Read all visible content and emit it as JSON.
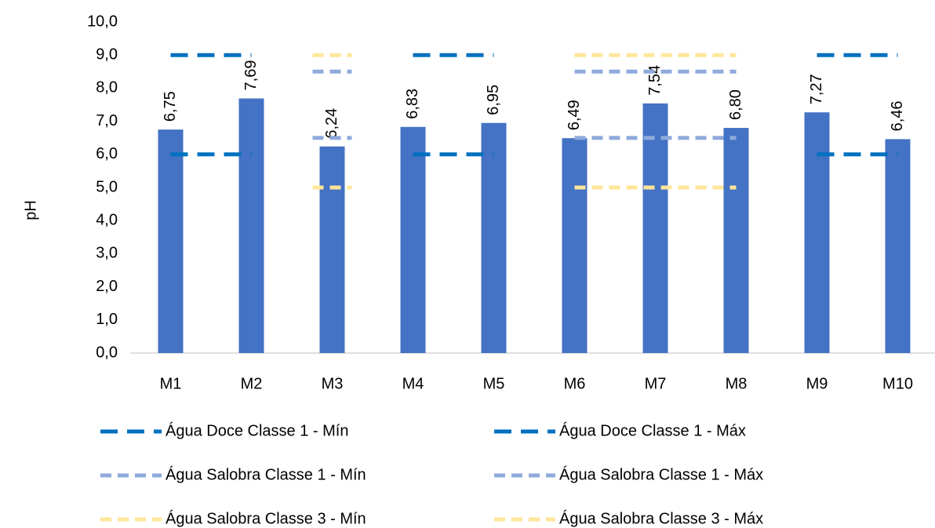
{
  "chart_data": {
    "type": "bar",
    "y_label": "pH",
    "categories": [
      "M1",
      "M2",
      "M3",
      "M4",
      "M5",
      "M6",
      "M7",
      "M8",
      "M9",
      "M10"
    ],
    "values": [
      6.75,
      7.69,
      6.24,
      6.83,
      6.95,
      6.49,
      7.54,
      6.8,
      7.27,
      6.46
    ],
    "value_labels": [
      "6,75",
      "7,69",
      "6,24",
      "6,83",
      "6,95",
      "6,49",
      "7,54",
      "6,80",
      "7,27",
      "6,46"
    ],
    "color": "#4472c4",
    "ylim": [
      0,
      10
    ],
    "yticks": [
      {
        "value": 0,
        "label": "0,0"
      },
      {
        "value": 1,
        "label": "1,0"
      },
      {
        "value": 2,
        "label": "2,0"
      },
      {
        "value": 3,
        "label": "3,0"
      },
      {
        "value": 4,
        "label": "4,0"
      },
      {
        "value": 5,
        "label": "5,0"
      },
      {
        "value": 6,
        "label": "6,0"
      },
      {
        "value": 7,
        "label": "7,0"
      },
      {
        "value": 8,
        "label": "8,0"
      },
      {
        "value": 9,
        "label": "9,0"
      },
      {
        "value": 10,
        "label": "10,0"
      }
    ],
    "grid": false,
    "series": [
      {
        "name": "Água Doce Classe 1 - Mín",
        "type": "line",
        "color": "#0070c0",
        "values": [
          6,
          6,
          null,
          6,
          6,
          null,
          null,
          null,
          6,
          6
        ]
      },
      {
        "name": "Água Doce Classe 1 - Máx",
        "type": "line",
        "color": "#0070c0",
        "values": [
          9,
          9,
          null,
          9,
          9,
          null,
          null,
          null,
          9,
          9
        ]
      },
      {
        "name": "Água Salobra Classe 1 - Mín",
        "type": "line",
        "color": "#8faadc",
        "values": [
          null,
          null,
          6.5,
          null,
          null,
          6.5,
          6.5,
          6.5,
          null,
          null
        ]
      },
      {
        "name": "Água Salobra Classe 1 - Máx",
        "type": "line",
        "color": "#8faadc",
        "values": [
          null,
          null,
          8.5,
          null,
          null,
          8.5,
          8.5,
          8.5,
          null,
          null
        ]
      },
      {
        "name": "Água Salobra Classe 3 - Mín",
        "type": "line",
        "color": "#ffe699",
        "values": [
          null,
          null,
          5,
          null,
          null,
          5,
          5,
          5,
          null,
          null
        ]
      },
      {
        "name": "Água Salobra Classe 3 - Máx",
        "type": "line",
        "color": "#ffe699",
        "values": [
          null,
          null,
          9,
          null,
          null,
          9,
          9,
          9,
          null,
          null
        ]
      }
    ]
  }
}
